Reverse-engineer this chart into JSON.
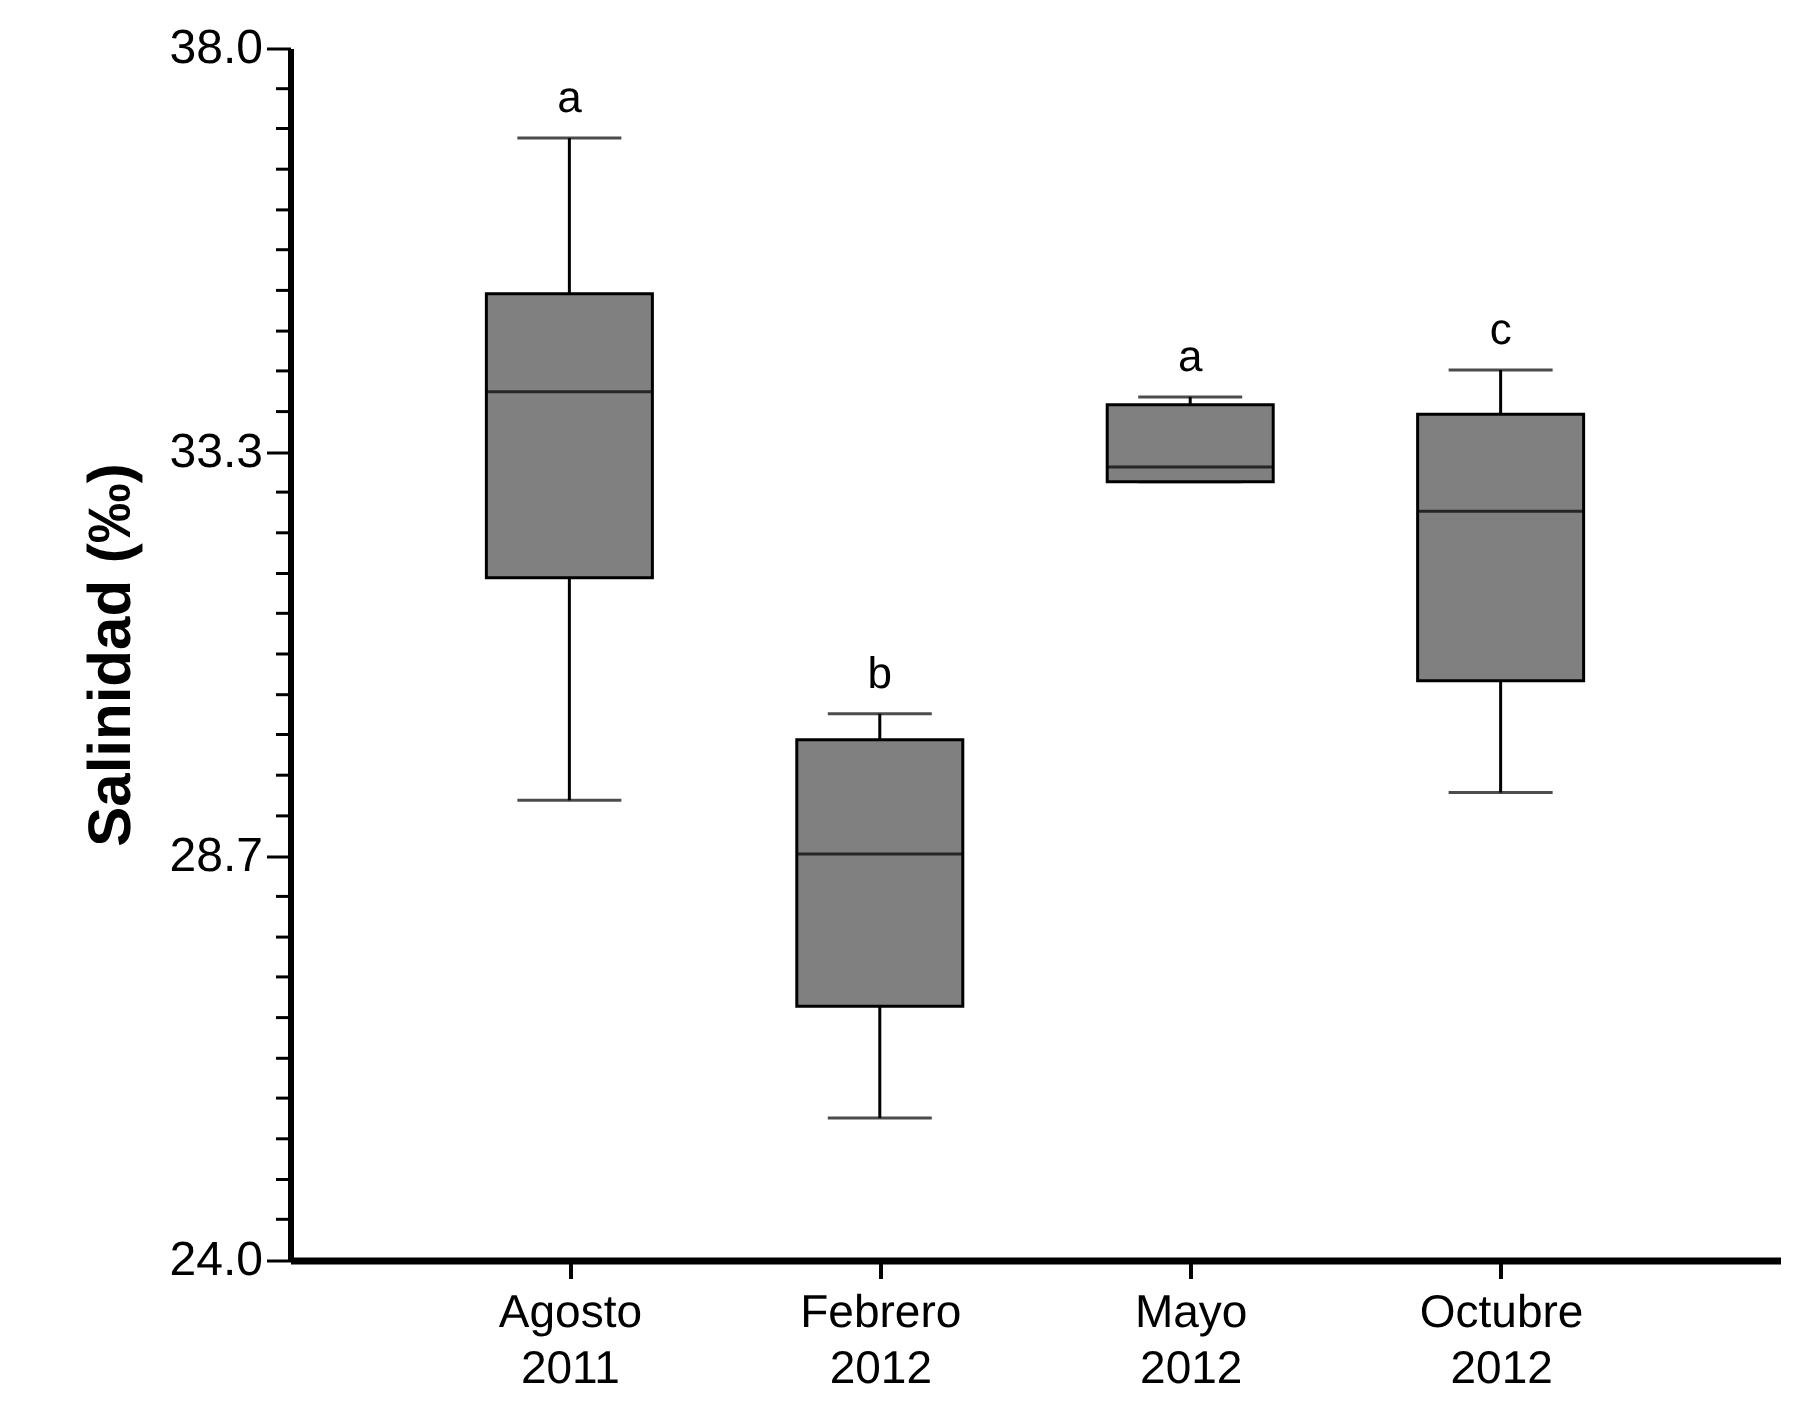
{
  "chart_data": {
    "type": "box",
    "ylabel": "Salinidad (‰)",
    "categories": [
      "Agosto 2011",
      "Febrero 2012",
      "Mayo 2012",
      "Octubre 2012"
    ],
    "boxes": [
      {
        "low": 29.31,
        "q1": 31.88,
        "median": 34.03,
        "q3": 35.16,
        "high": 36.96
      },
      {
        "low": 25.64,
        "q1": 26.93,
        "median": 28.69,
        "q3": 30.01,
        "high": 30.31
      },
      {
        "low": 32.99,
        "q1": 32.99,
        "median": 33.16,
        "q3": 33.88,
        "high": 33.97
      },
      {
        "low": 29.4,
        "q1": 30.69,
        "median": 32.65,
        "q3": 33.77,
        "high": 34.28
      }
    ],
    "color": "#808080",
    "ylim": [
      24,
      38
    ],
    "yticks": [
      {
        "value": 24,
        "label": "24.0"
      },
      {
        "value": 24.47,
        "label": null
      },
      {
        "value": 24.93,
        "label": null
      },
      {
        "value": 25.4,
        "label": null
      },
      {
        "value": 25.87,
        "label": null
      },
      {
        "value": 26.33,
        "label": null
      },
      {
        "value": 26.8,
        "label": null
      },
      {
        "value": 27.27,
        "label": null
      },
      {
        "value": 27.73,
        "label": null
      },
      {
        "value": 28.2,
        "label": null
      },
      {
        "value": 28.67,
        "label": "28.7"
      },
      {
        "value": 29.13,
        "label": null
      },
      {
        "value": 29.6,
        "label": null
      },
      {
        "value": 30.07,
        "label": null
      },
      {
        "value": 30.53,
        "label": null
      },
      {
        "value": 31,
        "label": null
      },
      {
        "value": 31.47,
        "label": null
      },
      {
        "value": 31.93,
        "label": null
      },
      {
        "value": 32.4,
        "label": null
      },
      {
        "value": 32.87,
        "label": null
      },
      {
        "value": 33.33,
        "label": "33.3"
      },
      {
        "value": 33.8,
        "label": null
      },
      {
        "value": 34.27,
        "label": null
      },
      {
        "value": 34.73,
        "label": null
      },
      {
        "value": 35.2,
        "label": null
      },
      {
        "value": 35.67,
        "label": null
      },
      {
        "value": 36.13,
        "label": null
      },
      {
        "value": 36.6,
        "label": null
      },
      {
        "value": 37.07,
        "label": null
      },
      {
        "value": 37.53,
        "label": null
      },
      {
        "value": 38,
        "label": "38.0"
      }
    ],
    "annotations": [
      "a",
      "b",
      "a",
      "c"
    ],
    "grid": false
  }
}
